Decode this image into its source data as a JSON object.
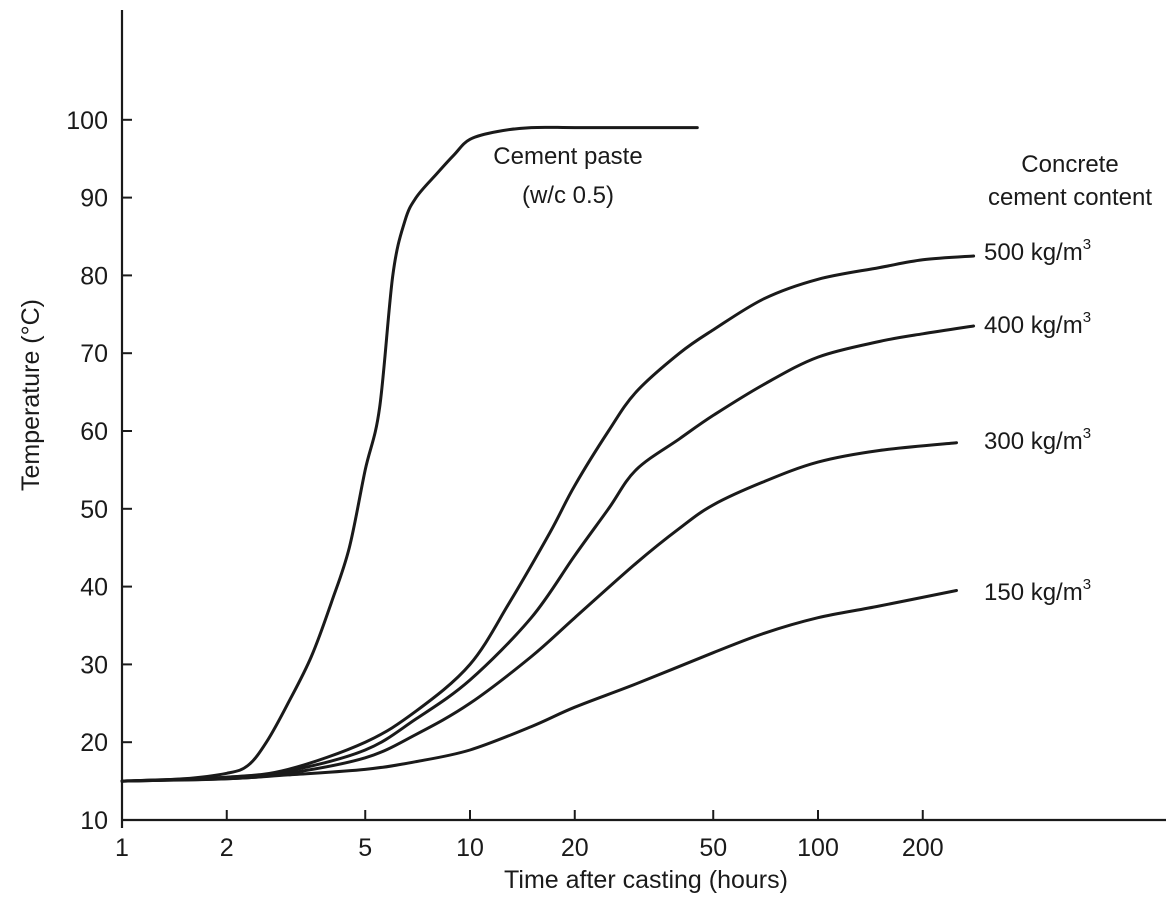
{
  "chart_data": {
    "type": "line",
    "xscale": "log",
    "xlim": [
      1,
      1000
    ],
    "ylim": [
      10,
      110
    ],
    "xlabel": "Time after casting (hours)",
    "ylabel": "Temperature (°C)",
    "xticks": [
      1,
      2,
      5,
      10,
      20,
      50,
      100,
      200
    ],
    "xtick_labels": [
      "1",
      "2",
      "5",
      "10",
      "20",
      "50",
      "100",
      "200"
    ],
    "yticks": [
      10,
      20,
      30,
      40,
      50,
      60,
      70,
      80,
      90,
      100
    ],
    "ytick_labels": [
      "10",
      "20",
      "30",
      "40",
      "50",
      "60",
      "70",
      "80",
      "90",
      "100"
    ],
    "grid": false,
    "legend": "none",
    "annotations": {
      "header_line1": "Concrete",
      "header_line2": "cement content",
      "paste_line1": "Cement paste",
      "paste_line2": "(w/c 0.5)"
    },
    "series": [
      {
        "key": "paste",
        "name": "Cement paste (w/c 0.5)",
        "x": [
          1,
          1.5,
          2,
          2.3,
          2.6,
          3,
          3.5,
          4,
          4.5,
          5,
          5.5,
          6,
          6.5,
          7,
          8,
          9,
          10,
          12,
          15,
          20,
          30,
          45
        ],
        "y": [
          15,
          15.3,
          16,
          17,
          20,
          25,
          31,
          38,
          45,
          55,
          63,
          80,
          87,
          90,
          93,
          95.5,
          97.5,
          98.5,
          99,
          99,
          99,
          99
        ]
      },
      {
        "key": "c500",
        "label_main": "500 kg/m",
        "label_sup": "3",
        "x": [
          1,
          2,
          3,
          5,
          7,
          10,
          13,
          17,
          20,
          25,
          30,
          40,
          50,
          70,
          100,
          150,
          200,
          280
        ],
        "y": [
          15,
          15.5,
          16.5,
          20,
          24,
          30,
          38,
          47,
          53,
          60,
          65,
          70,
          73,
          77,
          79.5,
          81,
          82,
          82.5
        ]
      },
      {
        "key": "c400",
        "label_main": "400 kg/m",
        "label_sup": "3",
        "x": [
          1,
          2,
          3,
          5,
          7,
          10,
          15,
          20,
          25,
          30,
          40,
          50,
          70,
          100,
          150,
          200,
          280
        ],
        "y": [
          15,
          15.5,
          16.3,
          19,
          23,
          28,
          36,
          44,
          50,
          55,
          59,
          62,
          66,
          69.5,
          71.5,
          72.5,
          73.5
        ]
      },
      {
        "key": "c300",
        "label_main": "300 kg/m",
        "label_sup": "3",
        "x": [
          1,
          2,
          3,
          5,
          7,
          10,
          15,
          20,
          30,
          40,
          50,
          70,
          100,
          150,
          250
        ],
        "y": [
          15,
          15.3,
          16,
          18,
          21,
          25,
          31,
          36,
          43,
          47.5,
          50.5,
          53.5,
          56,
          57.5,
          58.5
        ]
      },
      {
        "key": "c150",
        "label_main": "150 kg/m",
        "label_sup": "3",
        "x": [
          1,
          2,
          3,
          5,
          7,
          10,
          15,
          20,
          30,
          50,
          70,
          100,
          150,
          250
        ],
        "y": [
          15,
          15.3,
          15.8,
          16.5,
          17.5,
          19,
          22,
          24.5,
          27.5,
          31.5,
          34,
          36,
          37.5,
          39.5
        ]
      }
    ]
  }
}
